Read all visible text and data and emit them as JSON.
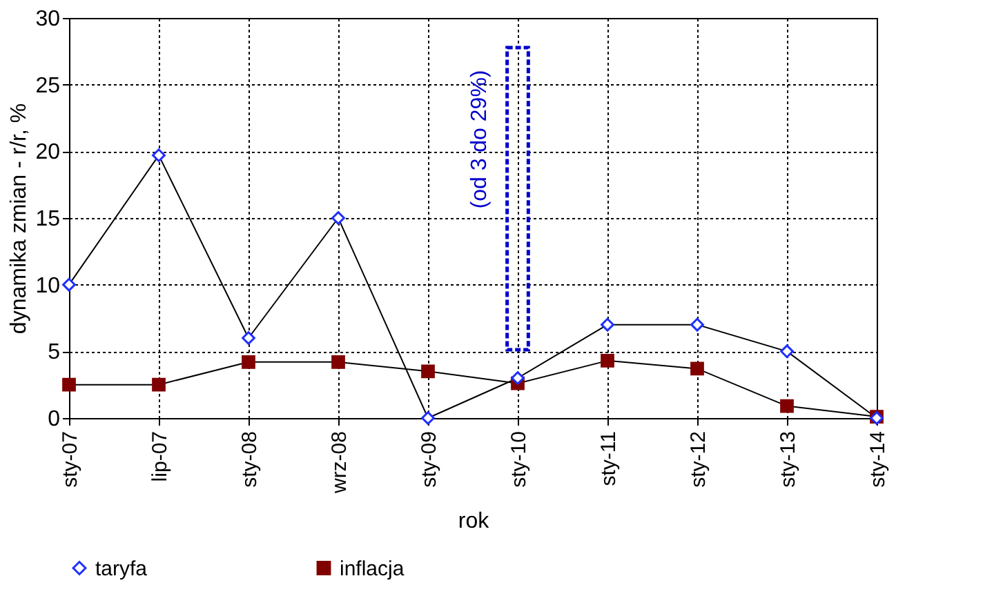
{
  "chart_data": {
    "type": "line",
    "xlabel": "rok",
    "ylabel": "dynamika zmian - r/r, %",
    "categories": [
      "sty-07",
      "lip-07",
      "sty-08",
      "wrz-08",
      "sty-09",
      "sty-10",
      "sty-11",
      "sty-12",
      "sty-13",
      "sty-14"
    ],
    "series": [
      {
        "name": "taryfa",
        "color": "#1f2fff",
        "marker": "diamond",
        "values": [
          10,
          19.7,
          6,
          15,
          0,
          3,
          7,
          7,
          5,
          0
        ]
      },
      {
        "name": "inflacja",
        "color": "#800000",
        "marker": "square",
        "values": [
          2.5,
          2.5,
          4.2,
          4.2,
          3.5,
          2.6,
          4.3,
          3.7,
          0.9,
          0.1
        ]
      }
    ],
    "ylim": [
      0,
      30
    ],
    "yticks": [
      0,
      5,
      10,
      15,
      20,
      25,
      30
    ],
    "grid": true,
    "legend": "bottom",
    "annotations": [
      "(od 3 do 29%)"
    ]
  }
}
